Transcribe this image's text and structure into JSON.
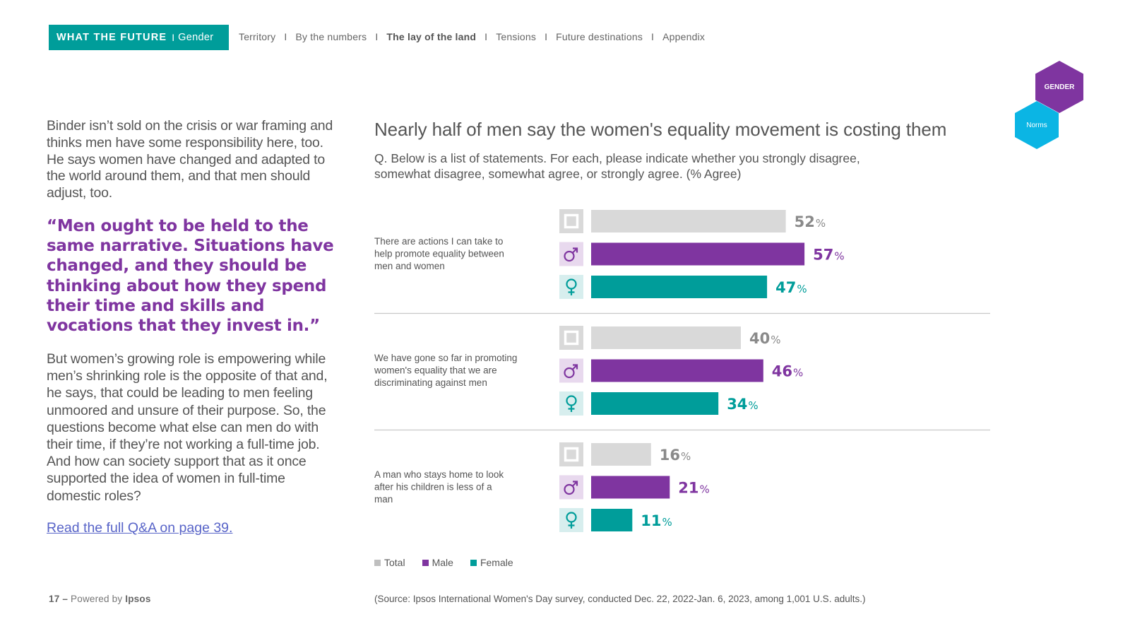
{
  "nav": {
    "brand_main": "WHAT THE FUTURE",
    "brand_sep": "I",
    "brand_sub": "Gender",
    "links": [
      {
        "label": "Territory",
        "active": false
      },
      {
        "label": "By the numbers",
        "active": false
      },
      {
        "label": "The lay of the land",
        "active": true
      },
      {
        "label": "Tensions",
        "active": false
      },
      {
        "label": "Future destinations",
        "active": false
      },
      {
        "label": "Appendix",
        "active": false
      }
    ],
    "separator": "I"
  },
  "badges": {
    "primary": "GENDER",
    "secondary": "Norms",
    "primary_color": "#7f35a0",
    "secondary_color": "#0bb5e4"
  },
  "left": {
    "intro": "Binder isn’t sold on the crisis or war framing and thinks men have some responsibility here, too. He says women have changed and adapted to the world around them, and that men should adjust, too.",
    "quote": "“Men ought to be held to the same narrative. Situations have changed, and they should be thinking about how they spend their time and skills and vocations that they invest in.”",
    "body": "But women’s growing role is empowering while men’s shrinking role is the opposite of that and, he says, that could be leading to men feeling unmoored and unsure of their purpose. So, the questions become what else can men do with their time, if they’re not working a full-time job. And how can society support that as it once supported the idea of women in full-time domestic roles?",
    "link": "Read the full Q&A on page 39."
  },
  "footer": {
    "page": "17 –",
    "powered_by": "Powered by",
    "brand": "Ipsos",
    "source": "(Source: Ipsos International Women's Day survey, conducted Dec. 22, 2022-Jan. 6, 2023, among 1,001 U.S. adults.)"
  },
  "chart_data": {
    "type": "bar",
    "orientation": "horizontal",
    "title": "Nearly half of men say the women's equality movement is costing them",
    "question": "Q. Below is a list of statements. For each, please indicate whether you strongly disagree, somewhat disagree, somewhat agree, or strongly agree. (% Agree)",
    "unit": "%",
    "xlim": [
      0,
      100
    ],
    "categories": [
      "There are actions I can take to help promote equality between men and women",
      "We have gone so far in promoting women's equality that we are discriminating against men",
      "A man who stays home to look after his children is less of a man"
    ],
    "series": [
      {
        "name": "Total",
        "color": "#d9d9d9",
        "label_color": "#8a8a8a",
        "icon": "total-icon",
        "icon_bg": "#d9d9d9",
        "values": [
          52,
          40,
          16
        ]
      },
      {
        "name": "Male",
        "color": "#7f35a0",
        "label_color": "#7f35a0",
        "icon": "male-icon",
        "icon_bg": "#e8d9ee",
        "values": [
          57,
          46,
          21
        ]
      },
      {
        "name": "Female",
        "color": "#009d9a",
        "label_color": "#009d9a",
        "icon": "female-icon",
        "icon_bg": "#d7eeee",
        "values": [
          47,
          34,
          11
        ]
      }
    ],
    "legend": [
      "Total",
      "Male",
      "Female"
    ],
    "legend_position": "bottom-left"
  }
}
